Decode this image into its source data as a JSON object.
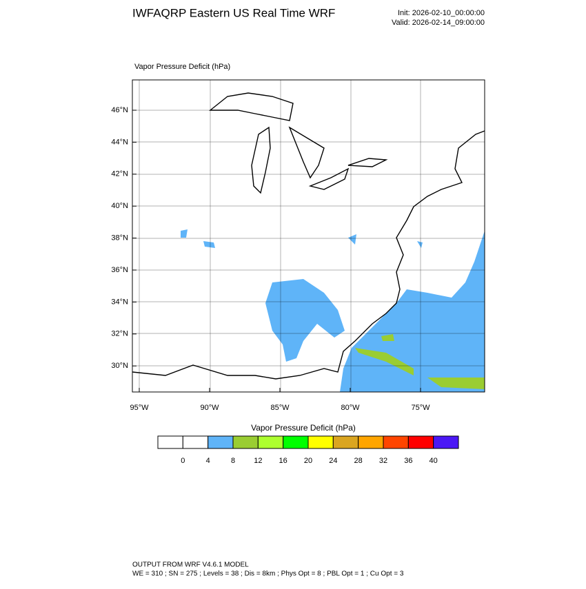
{
  "header": {
    "title": "IWFAQRP Eastern US Real Time WRF",
    "init": "Init: 2026-02-10_00:00:00",
    "valid": "Valid: 2026-02-14_09:00:00"
  },
  "map": {
    "title": "Vapor Pressure Deficit   (hPa)",
    "lat_labels": [
      "46°N",
      "44°N",
      "42°N",
      "40°N",
      "38°N",
      "36°N",
      "34°N",
      "32°N",
      "30°N"
    ],
    "lon_labels": [
      "95°W",
      "90°W",
      "85°W",
      "80°W",
      "75°W"
    ]
  },
  "colorbar": {
    "title": "Vapor Pressure Deficit  (hPa)",
    "colors": [
      "#ffffff",
      "#ffffff",
      "#5fb4f8",
      "#9acd32",
      "#adff2f",
      "#00ff00",
      "#ffff00",
      "#daa520",
      "#ffa500",
      "#ff4500",
      "#ff0000",
      "#4b18f5"
    ],
    "levels": [
      0,
      4,
      8,
      12,
      16,
      20,
      24,
      28,
      32,
      36,
      40
    ]
  },
  "footer": {
    "line1": "OUTPUT FROM WRF V4.6.1 MODEL",
    "line2": "WE = 310 ; SN = 275 ; Levels = 38 ; Dis = 8km ; Phys Opt = 8 ; PBL Opt = 1 ; Cu Opt = 3"
  }
}
